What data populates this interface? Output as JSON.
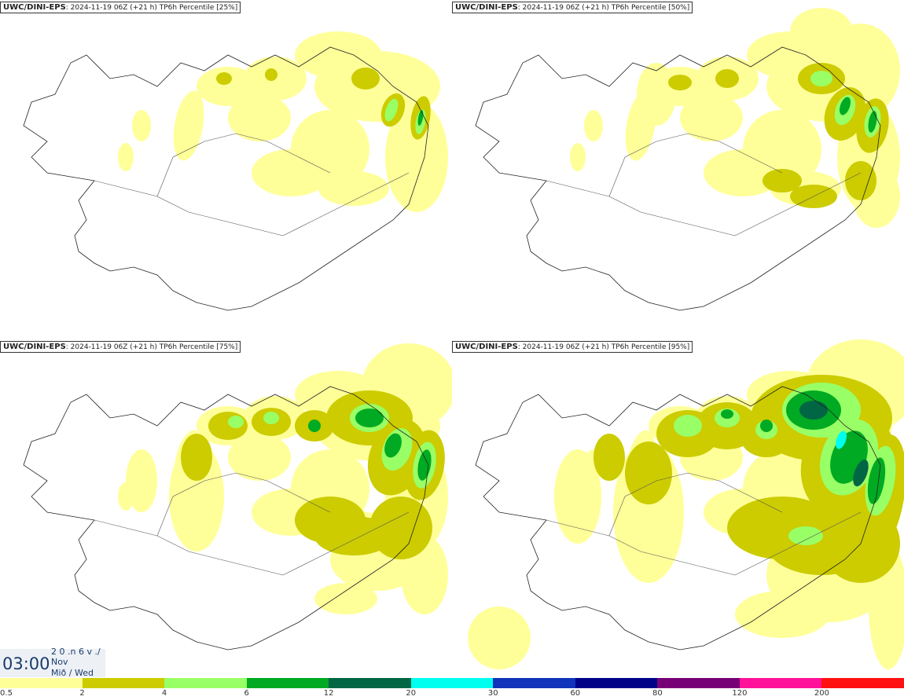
{
  "panels": [
    {
      "model": "UWC/DINI-EPS",
      "info": ": 2024-11-19 06Z (+21 h) TP6h Percentile [25%]",
      "level": 1
    },
    {
      "model": "UWC/DINI-EPS",
      "info": ": 2024-11-19 06Z (+21 h) TP6h Percentile [50%]",
      "level": 2
    },
    {
      "model": "UWC/DINI-EPS",
      "info": ": 2024-11-19 06Z (+21 h) TP6h Percentile [75%]",
      "level": 3
    },
    {
      "model": "UWC/DINI-EPS",
      "info": ": 2024-11-19 06Z (+21 h) TP6h Percentile [95%]",
      "level": 4
    }
  ],
  "time": {
    "clock": "03:00",
    "line1": "2 0 .n 6 v ./",
    "line2": "Nov",
    "line3": "Mið / Wed"
  },
  "legend": {
    "colors": [
      "#ffff99",
      "#cccc00",
      "#99ff66",
      "#00aa22",
      "#006644",
      "#00ffee",
      "#1133bb",
      "#000088",
      "#770077",
      "#ff1199",
      "#ff1111"
    ],
    "ticks": [
      "0.5",
      "2",
      "4",
      "6",
      "12",
      "20",
      "30",
      "60",
      "80",
      "120",
      "200"
    ]
  }
}
